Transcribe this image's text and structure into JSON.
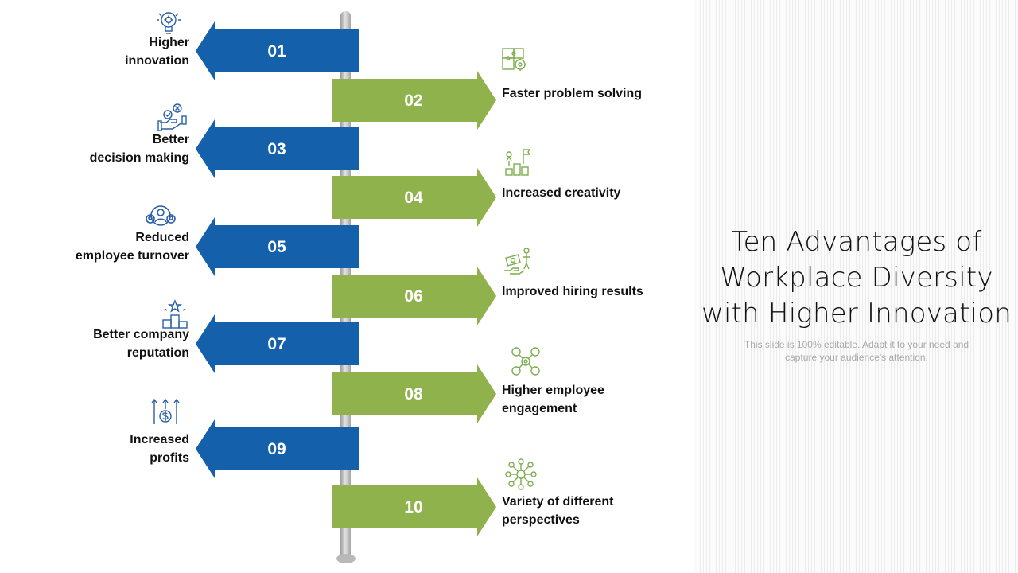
{
  "colors": {
    "blue_arrow": "#1560ab",
    "green_arrow": "#8fb24c",
    "blue_icon": "#2a5fa8",
    "green_icon": "#7cae4d"
  },
  "title": {
    "line1": "Ten Advantages of",
    "line2": "Workplace Diversity",
    "line3": "with Higher Innovation"
  },
  "subtitle": {
    "line1": "This slide is 100% editable. Adapt it to your need and",
    "line2": "capture your audience's attention."
  },
  "items": [
    {
      "number": "01",
      "label_lines": [
        "Higher",
        "innovation"
      ],
      "icon": "lightbulb-gear-icon"
    },
    {
      "number": "02",
      "label_lines": [
        "Faster problem solving"
      ],
      "icon": "puzzle-gear-icon"
    },
    {
      "number": "03",
      "label_lines": [
        "Better",
        "decision making"
      ],
      "icon": "decision-hand-icon"
    },
    {
      "number": "04",
      "label_lines": [
        "Increased creativity"
      ],
      "icon": "growth-flag-icon"
    },
    {
      "number": "05",
      "label_lines": [
        "Reduced",
        "employee turnover"
      ],
      "icon": "team-circle-icon"
    },
    {
      "number": "06",
      "label_lines": [
        "Improved hiring results"
      ],
      "icon": "hiring-cash-icon"
    },
    {
      "number": "07",
      "label_lines": [
        "Better company",
        "reputation"
      ],
      "icon": "podium-star-icon"
    },
    {
      "number": "08",
      "label_lines": [
        "Higher employee",
        "engagement"
      ],
      "icon": "network-people-icon"
    },
    {
      "number": "09",
      "label_lines": [
        "Increased",
        "profits"
      ],
      "icon": "dollar-growth-icon"
    },
    {
      "number": "10",
      "label_lines": [
        "Variety of different",
        "perspectives"
      ],
      "icon": "hub-nodes-icon"
    }
  ]
}
